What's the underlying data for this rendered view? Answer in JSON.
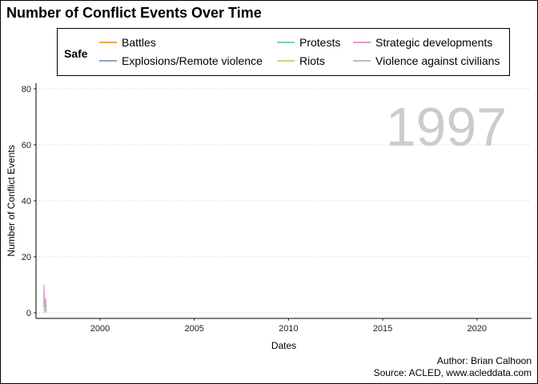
{
  "chart_data": {
    "type": "line",
    "title": "Number of Conflict Events Over Time",
    "xlabel": "Dates",
    "ylabel": "Number of Conflict Events",
    "x_ticks": [
      2000,
      2005,
      2010,
      2015,
      2020
    ],
    "y_ticks": [
      0,
      20,
      40,
      60,
      80
    ],
    "xlim": [
      1996.6,
      2022.9
    ],
    "ylim": [
      -2,
      82
    ],
    "grid": "horizontal dotted",
    "legend": {
      "title": "Safe",
      "position": "top",
      "entries": [
        {
          "name": "Battles",
          "color": "#E9A84A"
        },
        {
          "name": "Explosions/Remote violence",
          "color": "#8C9DC6"
        },
        {
          "name": "Protests",
          "color": "#7DCBC0"
        },
        {
          "name": "Riots",
          "color": "#C9D77A"
        },
        {
          "name": "Strategic developments",
          "color": "#DE9BC7"
        },
        {
          "name": "Violence against civilians",
          "color": "#BDBDBD"
        }
      ]
    },
    "annotation": "1997",
    "series": [
      {
        "name": "Battles",
        "color": "#E9A84A",
        "points": [
          [
            1997.0,
            2
          ],
          [
            1997.05,
            4
          ],
          [
            1997.1,
            1
          ],
          [
            1997.15,
            3
          ]
        ]
      },
      {
        "name": "Explosions/Remote violence",
        "color": "#8C9DC6",
        "points": [
          [
            1997.0,
            0
          ],
          [
            1997.08,
            1
          ],
          [
            1997.15,
            0
          ]
        ]
      },
      {
        "name": "Protests",
        "color": "#7DCBC0",
        "points": [
          [
            1997.0,
            1
          ],
          [
            1997.1,
            2
          ],
          [
            1997.15,
            0
          ]
        ]
      },
      {
        "name": "Riots",
        "color": "#C9D77A",
        "points": [
          [
            1997.0,
            0
          ],
          [
            1997.1,
            1
          ],
          [
            1997.15,
            0
          ]
        ]
      },
      {
        "name": "Strategic developments",
        "color": "#DE9BC7",
        "points": [
          [
            1997.0,
            2
          ],
          [
            1997.03,
            10
          ],
          [
            1997.07,
            3
          ],
          [
            1997.12,
            5
          ],
          [
            1997.15,
            2
          ]
        ]
      },
      {
        "name": "Violence against civilians",
        "color": "#BDBDBD",
        "points": [
          [
            1997.0,
            4
          ],
          [
            1997.05,
            2
          ],
          [
            1997.1,
            3
          ],
          [
            1997.15,
            1
          ]
        ]
      }
    ]
  },
  "caption": {
    "author": "Author: Brian Calhoon",
    "source": "Source: ACLED, www.acleddata.com"
  }
}
